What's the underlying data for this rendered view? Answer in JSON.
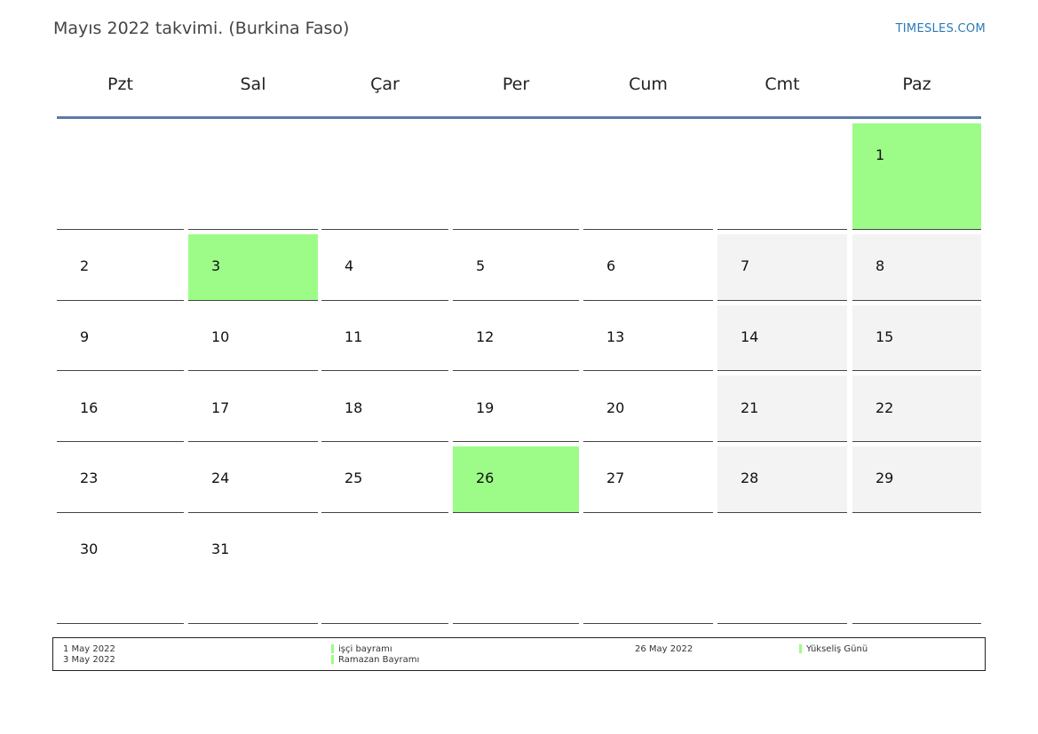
{
  "title": "Mayıs 2022 takvimi. (Burkina Faso)",
  "brand": "TIMESLES.COM",
  "weekdays": [
    "Pzt",
    "Sal",
    "Çar",
    "Per",
    "Cum",
    "Cmt",
    "Paz"
  ],
  "colors": {
    "holiday": "#9dfc88",
    "weekend": "#f3f3f3",
    "header_line": "#5b7aa6",
    "brand": "#2a7ab9"
  },
  "weeks": [
    [
      null,
      null,
      null,
      null,
      null,
      null,
      {
        "day": "1",
        "holiday": true
      }
    ],
    [
      {
        "day": "2"
      },
      {
        "day": "3",
        "holiday": true
      },
      {
        "day": "4"
      },
      {
        "day": "5"
      },
      {
        "day": "6"
      },
      {
        "day": "7"
      },
      {
        "day": "8"
      }
    ],
    [
      {
        "day": "9"
      },
      {
        "day": "10"
      },
      {
        "day": "11"
      },
      {
        "day": "12"
      },
      {
        "day": "13"
      },
      {
        "day": "14"
      },
      {
        "day": "15"
      }
    ],
    [
      {
        "day": "16"
      },
      {
        "day": "17"
      },
      {
        "day": "18"
      },
      {
        "day": "19"
      },
      {
        "day": "20"
      },
      {
        "day": "21"
      },
      {
        "day": "22"
      }
    ],
    [
      {
        "day": "23"
      },
      {
        "day": "24"
      },
      {
        "day": "25"
      },
      {
        "day": "26",
        "holiday": true
      },
      {
        "day": "27"
      },
      {
        "day": "28"
      },
      {
        "day": "29"
      }
    ],
    [
      {
        "day": "30"
      },
      {
        "day": "31"
      },
      null,
      null,
      null,
      null,
      null
    ]
  ],
  "holidays": [
    {
      "date": "1 May 2022",
      "name": "işçi bayramı"
    },
    {
      "date": "3 May 2022",
      "name": "Ramazan Bayramı"
    },
    {
      "date": "26 May 2022",
      "name": "Yükseliş Günü"
    }
  ]
}
